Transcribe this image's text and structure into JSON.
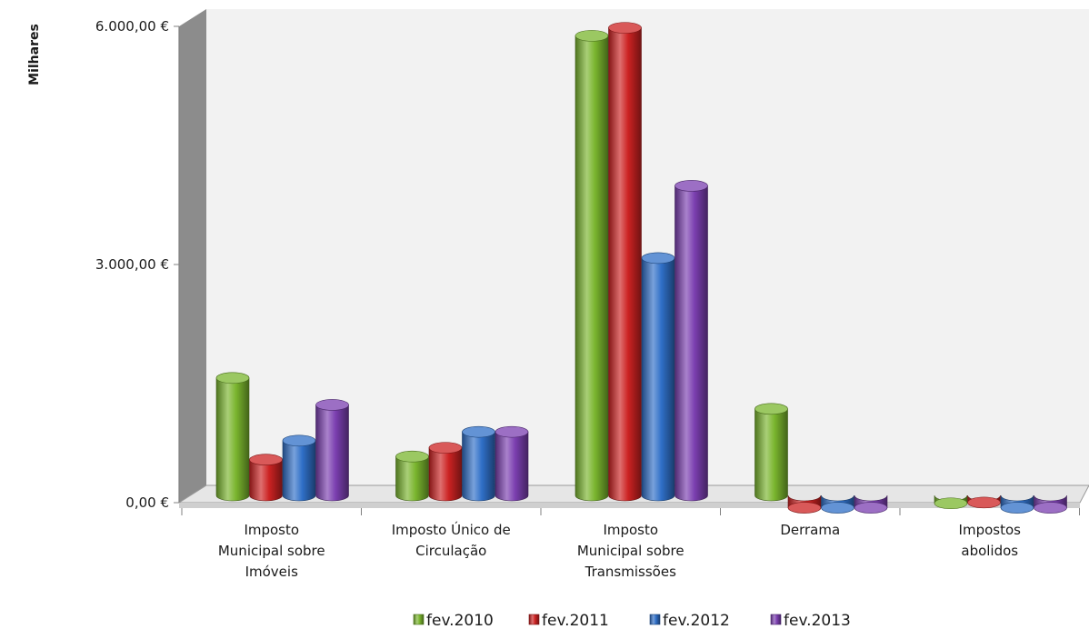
{
  "chart_data": {
    "type": "bar",
    "style": "3d-cylinder",
    "ylabel": "Milhares",
    "ylim": [
      0,
      6000
    ],
    "yticks": [
      0,
      3000,
      6000
    ],
    "ytick_labels": [
      "0,00 €",
      "3.000,00 €",
      "6.000,00 €"
    ],
    "categories": [
      [
        "Imposto",
        "Municipal sobre",
        "Imóveis"
      ],
      [
        "Imposto Único de",
        "Circulação"
      ],
      [
        "Imposto",
        "Municipal sobre",
        "Transmissões"
      ],
      [
        "Derrama"
      ],
      [
        "Impostos",
        "abolidos"
      ]
    ],
    "series": [
      {
        "name": "fev.2010",
        "color": "#7ab52e",
        "values": [
          1640,
          650,
          5950,
          1250,
          60
        ]
      },
      {
        "name": "fev.2011",
        "color": "#cc2222",
        "values": [
          610,
          760,
          6050,
          5,
          70
        ]
      },
      {
        "name": "fev.2012",
        "color": "#2f6fc7",
        "values": [
          850,
          960,
          3150,
          5,
          5
        ]
      },
      {
        "name": "fev.2013",
        "color": "#7b3fb0",
        "values": [
          1300,
          960,
          4060,
          5,
          5
        ]
      }
    ],
    "legend_position": "bottom",
    "grid": false,
    "wall_color": "#f2f2f2"
  }
}
